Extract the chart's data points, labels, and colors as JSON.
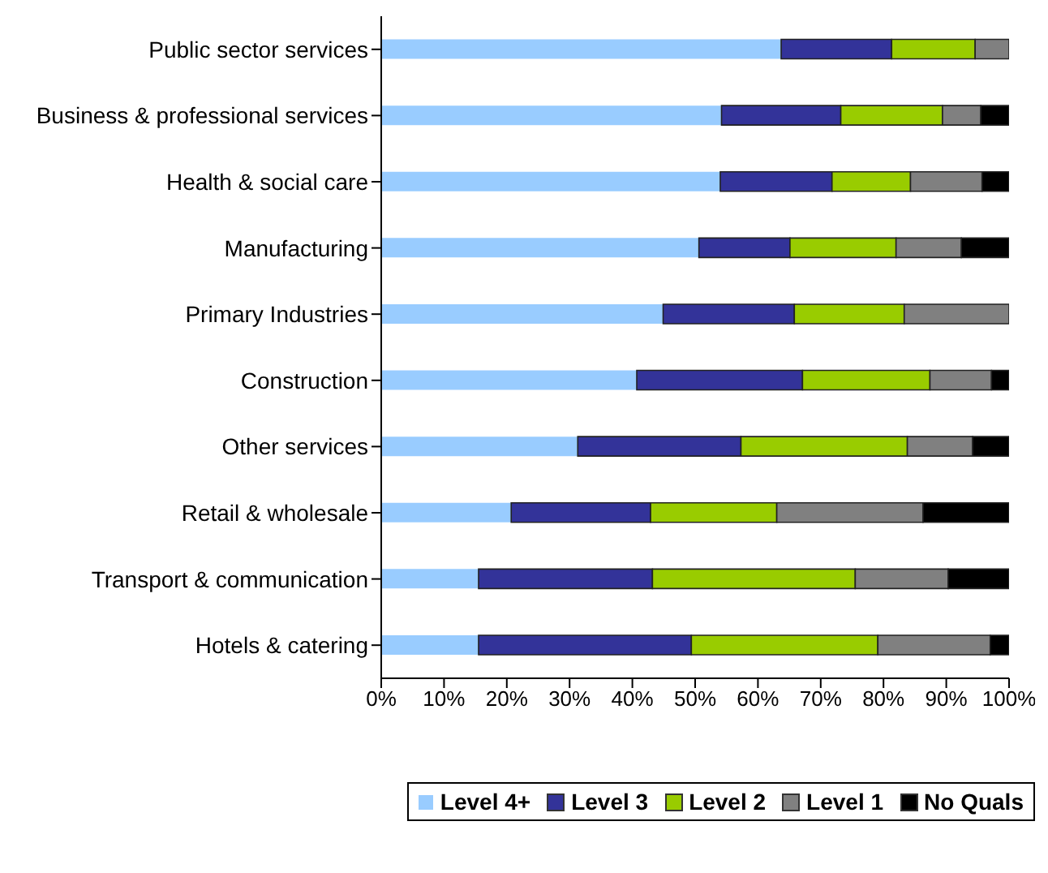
{
  "chart_data": {
    "type": "bar",
    "orientation": "horizontal",
    "stacked": true,
    "categories": [
      "Public sector services",
      "Business & professional services",
      "Health & social care",
      "Manufacturing",
      "Primary Industries",
      "Construction",
      "Other services",
      "Retail & wholesale",
      "Transport & communication",
      "Hotels & catering"
    ],
    "series": [
      {
        "name": "Level 4+",
        "color": "#99ccff",
        "values": [
          63.7,
          54.2,
          54.0,
          50.6,
          44.9,
          40.7,
          31.3,
          20.7,
          15.5,
          15.5
        ]
      },
      {
        "name": "Level 3",
        "color": "#333399",
        "values": [
          17.6,
          19.0,
          17.8,
          14.5,
          20.9,
          26.4,
          26.0,
          22.2,
          27.7,
          33.9
        ]
      },
      {
        "name": "Level 2",
        "color": "#99cc00",
        "values": [
          13.3,
          16.2,
          12.5,
          16.9,
          17.5,
          20.3,
          26.5,
          20.1,
          32.3,
          29.7
        ]
      },
      {
        "name": "Level 1",
        "color": "#808080",
        "values": [
          5.4,
          6.1,
          11.4,
          10.4,
          16.7,
          9.8,
          10.4,
          23.3,
          14.8,
          17.9
        ]
      },
      {
        "name": "No Quals",
        "color": "#000000",
        "values": [
          0,
          4.5,
          4.3,
          7.6,
          0,
          2.8,
          5.8,
          13.7,
          9.7,
          3.0
        ]
      }
    ],
    "xlim": [
      0,
      100
    ],
    "xticks": [
      {
        "value": 0,
        "label": "0%"
      },
      {
        "value": 10,
        "label": "10%"
      },
      {
        "value": 20,
        "label": "20%"
      },
      {
        "value": 30,
        "label": "30%"
      },
      {
        "value": 40,
        "label": "40%"
      },
      {
        "value": 50,
        "label": "50%"
      },
      {
        "value": 60,
        "label": "60%"
      },
      {
        "value": 70,
        "label": "70%"
      },
      {
        "value": 80,
        "label": "80%"
      },
      {
        "value": 90,
        "label": "90%"
      },
      {
        "value": 100,
        "label": "100%"
      }
    ],
    "grid": false,
    "legend": "bottom"
  }
}
